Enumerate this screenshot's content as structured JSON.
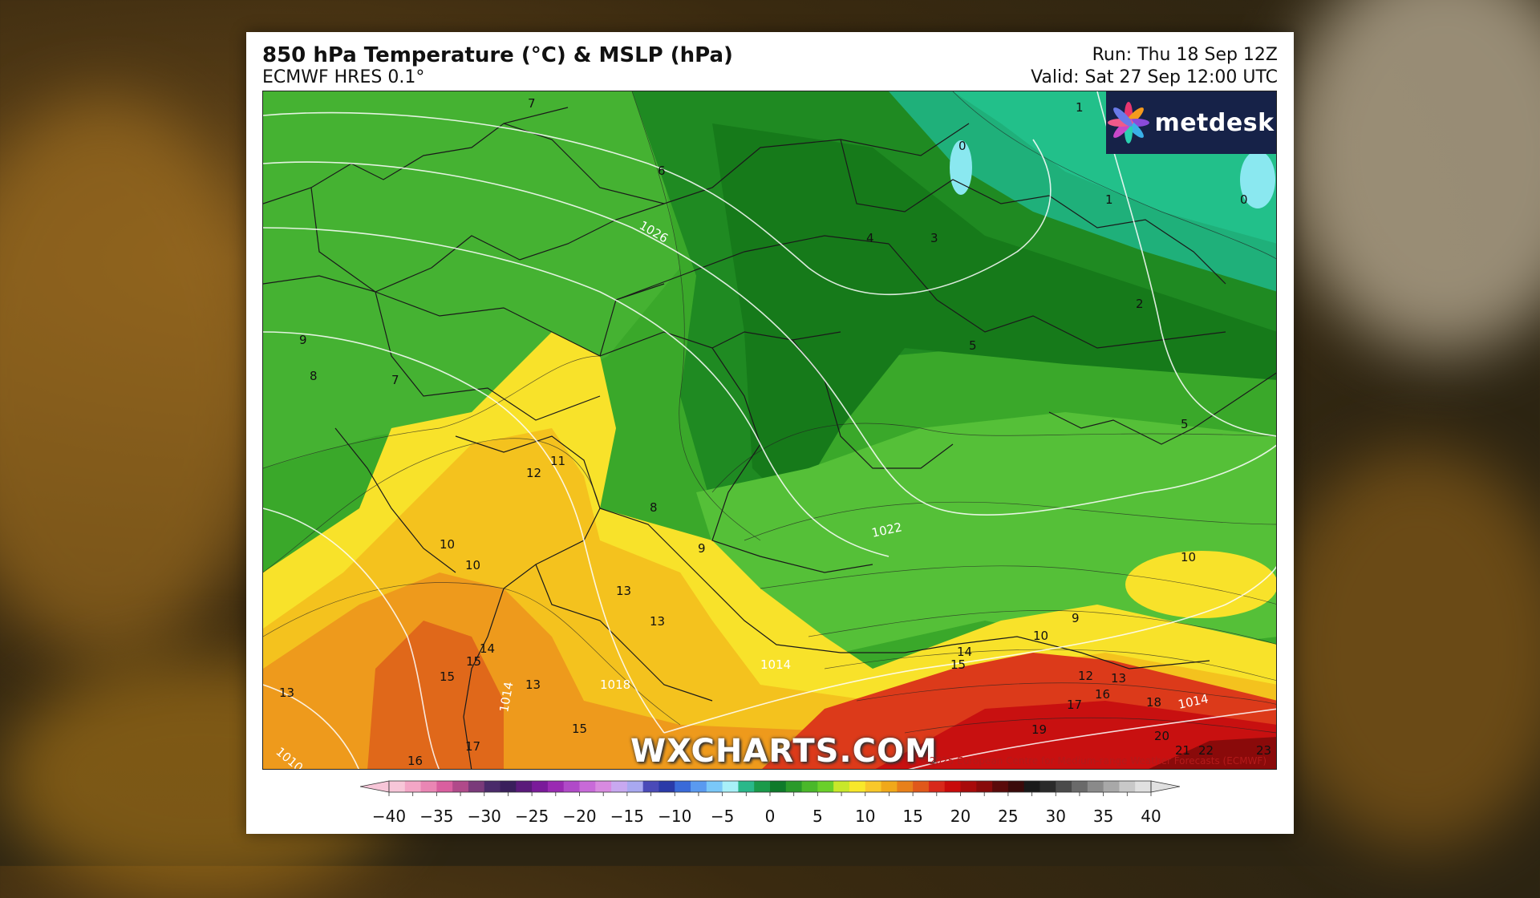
{
  "header": {
    "title": "850 hPa Temperature (°C) & MSLP (hPa)",
    "subtitle": "ECMWF HRES 0.1°",
    "run": "Run: Thu 18 Sep 12Z",
    "valid": "Valid: Sat 27 Sep 12:00 UTC"
  },
  "logo": {
    "text": "metdesk",
    "icon": "flower-logo-icon"
  },
  "watermark": "WXCHARTS.COM",
  "copyright": "©2025 European Centre for Medium-range Weather Forecasts (ECMWF)",
  "colorbar": {
    "tick_labels": [
      "−40",
      "−35",
      "−30",
      "−25",
      "−20",
      "−15",
      "−10",
      "−5",
      "0",
      "5",
      "10",
      "15",
      "20",
      "25",
      "30",
      "35",
      "40"
    ],
    "min": -40,
    "max": 40,
    "step": 2.5,
    "colors": [
      "#f7c6d8",
      "#f3a6c6",
      "#ea86b4",
      "#d95f9f",
      "#b04a8a",
      "#7a3a7a",
      "#4a2a6a",
      "#3a1f5c",
      "#5a1a7a",
      "#7a1a9a",
      "#9a2ab2",
      "#b04ac8",
      "#c86ad8",
      "#d88ae0",
      "#c8a8f0",
      "#a8a8f0",
      "#4a4ab8",
      "#2a3aa8",
      "#3a6ad8",
      "#5a9af0",
      "#7ac8f8",
      "#a8f0f8",
      "#2ab88a",
      "#1a9a4a",
      "#0e7a2a",
      "#2a9a2a",
      "#4ab82a",
      "#6ad02a",
      "#c8e82a",
      "#f8e82a",
      "#f8c82a",
      "#f0a81a",
      "#e8801a",
      "#e0581a",
      "#d8281a",
      "#c80a0a",
      "#a80a0a",
      "#880a0a",
      "#5a0a0a",
      "#3a0a0a",
      "#1a1a1a",
      "#2a2a2a",
      "#4a4a4a",
      "#6a6a6a",
      "#8a8a8a",
      "#a8a8a8",
      "#c8c8c8",
      "#e0e0e0"
    ]
  },
  "map": {
    "temperature_labels": [
      "1",
      "0",
      "0",
      "1",
      "4",
      "3",
      "2",
      "5",
      "5",
      "9",
      "8",
      "7",
      "11",
      "12",
      "8",
      "9",
      "10",
      "10",
      "13",
      "13",
      "14",
      "15",
      "15",
      "13",
      "13",
      "15",
      "17",
      "16",
      "14",
      "15",
      "12",
      "13",
      "16",
      "17",
      "18",
      "19",
      "20",
      "21",
      "22",
      "23",
      "10",
      "9",
      "10",
      "6",
      "7",
      "5"
    ],
    "isobar_labels": [
      "1026",
      "1022",
      "1014",
      "1014",
      "1018",
      "1010",
      "1014"
    ]
  }
}
